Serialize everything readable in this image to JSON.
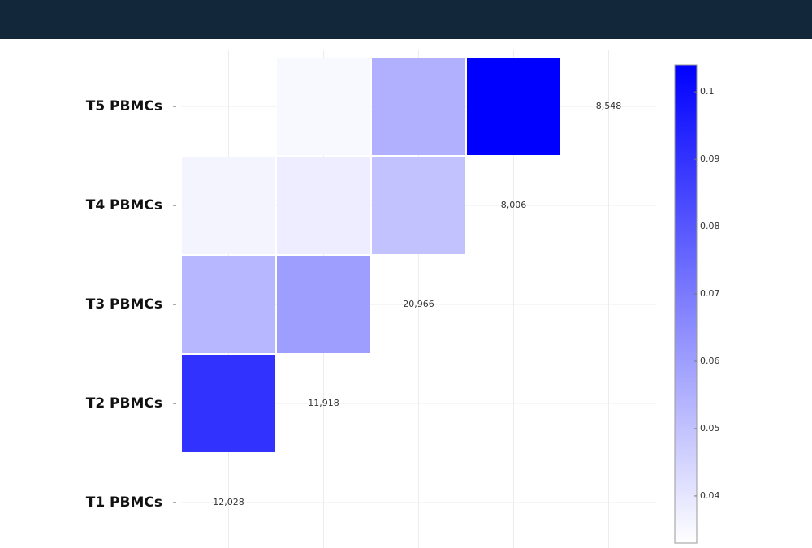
{
  "chart_data": {
    "type": "heatmap",
    "rows": [
      "T1 PBMCs",
      "T2 PBMCs",
      "T3 PBMCs",
      "T4 PBMCs",
      "T5 PBMCs"
    ],
    "z": [
      [
        null,
        null,
        null,
        null,
        null
      ],
      [
        0.09,
        null,
        null,
        null,
        null
      ],
      [
        0.053,
        0.06,
        null,
        null,
        null
      ],
      [
        0.036,
        0.038,
        0.05,
        null,
        null
      ],
      [
        null,
        0.035,
        0.055,
        0.104,
        null
      ]
    ],
    "diagonal_labels": [
      "12,028",
      "11,918",
      "20,966",
      "8,006",
      "8,548"
    ],
    "zlim": [
      0.033,
      0.104
    ],
    "zticks": [
      0.04,
      0.05,
      0.06,
      0.07,
      0.08,
      0.09,
      0.1
    ],
    "colorscale": [
      "#ffffff",
      "#0000ff"
    ],
    "grid": true
  }
}
